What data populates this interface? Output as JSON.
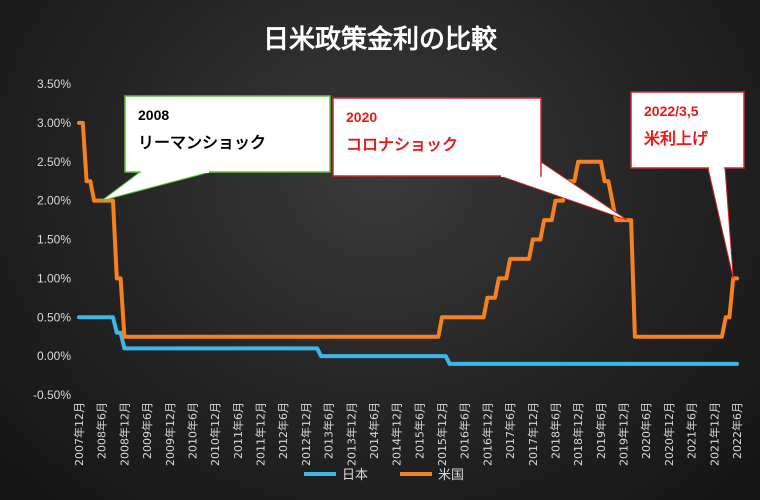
{
  "chart_data": {
    "type": "line",
    "title": "日米政策金利の比較",
    "ylim": [
      -0.5,
      3.5
    ],
    "yticks": [
      3.5,
      3.0,
      2.5,
      2.0,
      1.5,
      1.0,
      0.5,
      0.0,
      -0.5
    ],
    "ytick_labels": [
      "3.50%",
      "3.00%",
      "2.50%",
      "2.00%",
      "1.50%",
      "1.00%",
      "0.50%",
      "0.00%",
      "-0.50%"
    ],
    "xrange": [
      "2007-12",
      "2022-06"
    ],
    "xtick_labels": [
      "2007年12月",
      "2008年6月",
      "2008年12月",
      "2009年6月",
      "2009年12月",
      "2010年6月",
      "2010年12月",
      "2011年6月",
      "2011年12月",
      "2012年6月",
      "2012年12月",
      "2013年6月",
      "2013年12月",
      "2014年6月",
      "2014年12月",
      "2015年6月",
      "2015年12月",
      "2016年6月",
      "2016年12月",
      "2017年6月",
      "2017年12月",
      "2018年6月",
      "2018年12月",
      "2019年6月",
      "2019年12月",
      "2020年6月",
      "2020年12月",
      "2021年6月",
      "2021年12月",
      "2022年6月"
    ],
    "grid": false,
    "legend_position": "bottom",
    "series": [
      {
        "name": "日本",
        "color": "#3fb6e8",
        "points": [
          [
            "2007-12",
            0.5
          ],
          [
            "2008-09",
            0.5
          ],
          [
            "2008-10",
            0.3
          ],
          [
            "2008-11",
            0.3
          ],
          [
            "2008-12",
            0.1
          ],
          [
            "2013-03",
            0.1
          ],
          [
            "2013-04",
            0.0
          ],
          [
            "2016-01",
            0.0
          ],
          [
            "2016-02",
            -0.1
          ],
          [
            "2022-06",
            -0.1
          ]
        ]
      },
      {
        "name": "米国",
        "color": "#f5821f",
        "points": [
          [
            "2007-12",
            3.0
          ],
          [
            "2008-01",
            3.0
          ],
          [
            "2008-02",
            2.25
          ],
          [
            "2008-03",
            2.25
          ],
          [
            "2008-04",
            2.0
          ],
          [
            "2008-09",
            2.0
          ],
          [
            "2008-10",
            1.0
          ],
          [
            "2008-11",
            1.0
          ],
          [
            "2008-12",
            0.25
          ],
          [
            "2015-11",
            0.25
          ],
          [
            "2015-12",
            0.5
          ],
          [
            "2016-11",
            0.5
          ],
          [
            "2016-12",
            0.75
          ],
          [
            "2017-02",
            0.75
          ],
          [
            "2017-03",
            1.0
          ],
          [
            "2017-05",
            1.0
          ],
          [
            "2017-06",
            1.25
          ],
          [
            "2017-11",
            1.25
          ],
          [
            "2017-12",
            1.5
          ],
          [
            "2018-02",
            1.5
          ],
          [
            "2018-03",
            1.75
          ],
          [
            "2018-05",
            1.75
          ],
          [
            "2018-06",
            2.0
          ],
          [
            "2018-08",
            2.0
          ],
          [
            "2018-09",
            2.25
          ],
          [
            "2018-11",
            2.25
          ],
          [
            "2018-12",
            2.5
          ],
          [
            "2019-06",
            2.5
          ],
          [
            "2019-07",
            2.25
          ],
          [
            "2019-08",
            2.25
          ],
          [
            "2019-09",
            2.0
          ],
          [
            "2019-09",
            2.0
          ],
          [
            "2019-10",
            1.75
          ],
          [
            "2020-02",
            1.75
          ],
          [
            "2020-03",
            0.25
          ],
          [
            "2022-02",
            0.25
          ],
          [
            "2022-03",
            0.5
          ],
          [
            "2022-04",
            0.5
          ],
          [
            "2022-05",
            1.0
          ],
          [
            "2022-06",
            1.0
          ]
        ]
      }
    ],
    "annotations": [
      {
        "line1": "2008",
        "line2": "リーマンショック",
        "color": "#000000",
        "border": "#5cc43a",
        "anchor": [
          "2008-06",
          2.0
        ]
      },
      {
        "line1": "2020",
        "line2": "コロナショック",
        "color": "#e01b1b",
        "border": "#cc2a2a",
        "anchor": [
          "2020-01",
          1.75
        ]
      },
      {
        "line1": "2022/3,5",
        "line2": "米利上げ",
        "color": "#e01b1b",
        "border": "#cc2a2a",
        "anchor": [
          "2022-05",
          1.0
        ]
      }
    ]
  }
}
